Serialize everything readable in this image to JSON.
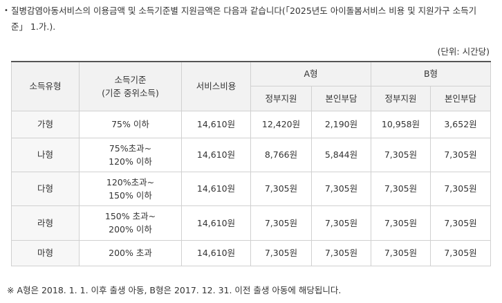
{
  "intro": {
    "bullet": "•",
    "text": "질병감염아동서비스의 이용금액 및 소득기준별 지원금액은 다음과 같습니다(「2025년도 아이돌봄서비스 비용 및 지원가구 소득기준」 1.가.)."
  },
  "unit": "(단위: 시간당)",
  "table": {
    "headers": {
      "income_type": "소득유형",
      "income_criteria_line1": "소득기준",
      "income_criteria_line2": "(기준 중위소득)",
      "service_fee": "서비스비용",
      "type_a": "A형",
      "type_b": "B형",
      "gov_support": "정부지원",
      "self_pay": "본인부담"
    },
    "rows": [
      {
        "type": "가형",
        "criteria_line1": "75% 이하",
        "criteria_line2": "",
        "fee": "14,610원",
        "a_gov": "12,420원",
        "a_self": "2,190원",
        "b_gov": "10,958원",
        "b_self": "3,652원"
      },
      {
        "type": "나형",
        "criteria_line1": "75%초과~",
        "criteria_line2": "120% 이하",
        "fee": "14,610원",
        "a_gov": "8,766원",
        "a_self": "5,844원",
        "b_gov": "7,305원",
        "b_self": "7,305원"
      },
      {
        "type": "다형",
        "criteria_line1": "120%초과~",
        "criteria_line2": "150% 이하",
        "fee": "14,610원",
        "a_gov": "7,305원",
        "a_self": "7,305원",
        "b_gov": "7,305원",
        "b_self": "7,305원"
      },
      {
        "type": "라형",
        "criteria_line1": "150% 초과~",
        "criteria_line2": "200% 이하",
        "fee": "14,610원",
        "a_gov": "7,305원",
        "a_self": "7,305원",
        "b_gov": "7,305원",
        "b_self": "7,305원"
      },
      {
        "type": "마형",
        "criteria_line1": "200% 초과",
        "criteria_line2": "",
        "fee": "14,610원",
        "a_gov": "7,305원",
        "a_self": "7,305원",
        "b_gov": "7,305원",
        "b_self": "7,305원"
      }
    ]
  },
  "note": "※ A형은 2018. 1. 1. 이후 출생 아동, B형은 2017. 12. 31. 이전 출생 아동에 해당됩니다."
}
